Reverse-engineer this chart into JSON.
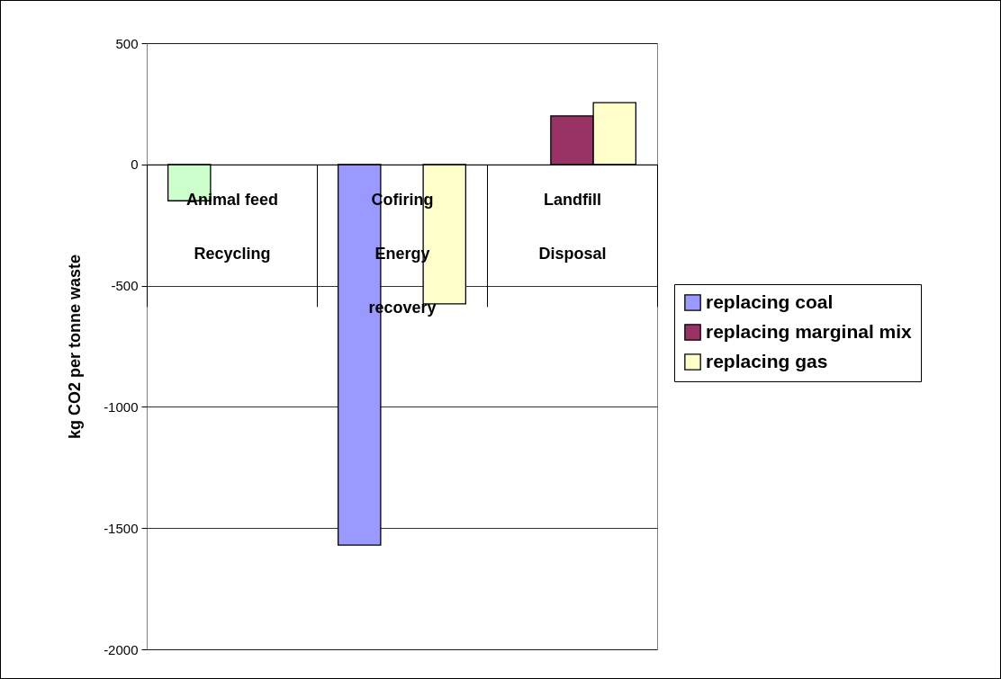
{
  "chart_data": {
    "type": "bar",
    "ylabel": "kg CO2 per tonne waste",
    "categories": [
      "Animal feed\nRecycling",
      "Cofiring\nEnergy\nrecovery",
      "Landfill\nDisposal"
    ],
    "series": [
      {
        "name": "replacing coal",
        "color": "#9999ff",
        "colors": [
          "#ccffcc",
          "#9999ff",
          "#9999ff"
        ],
        "values": [
          -150,
          -1570,
          null
        ]
      },
      {
        "name": "replacing marginal mix",
        "color": "#993366",
        "values": [
          null,
          null,
          200
        ]
      },
      {
        "name": "replacing gas",
        "color": "#ffffcc",
        "values": [
          null,
          -575,
          255
        ]
      }
    ],
    "ylim": [
      -2000,
      500
    ],
    "yticks": [
      -2000,
      -1500,
      -1000,
      -500,
      0,
      500
    ],
    "grid": "y",
    "legend": "right"
  }
}
